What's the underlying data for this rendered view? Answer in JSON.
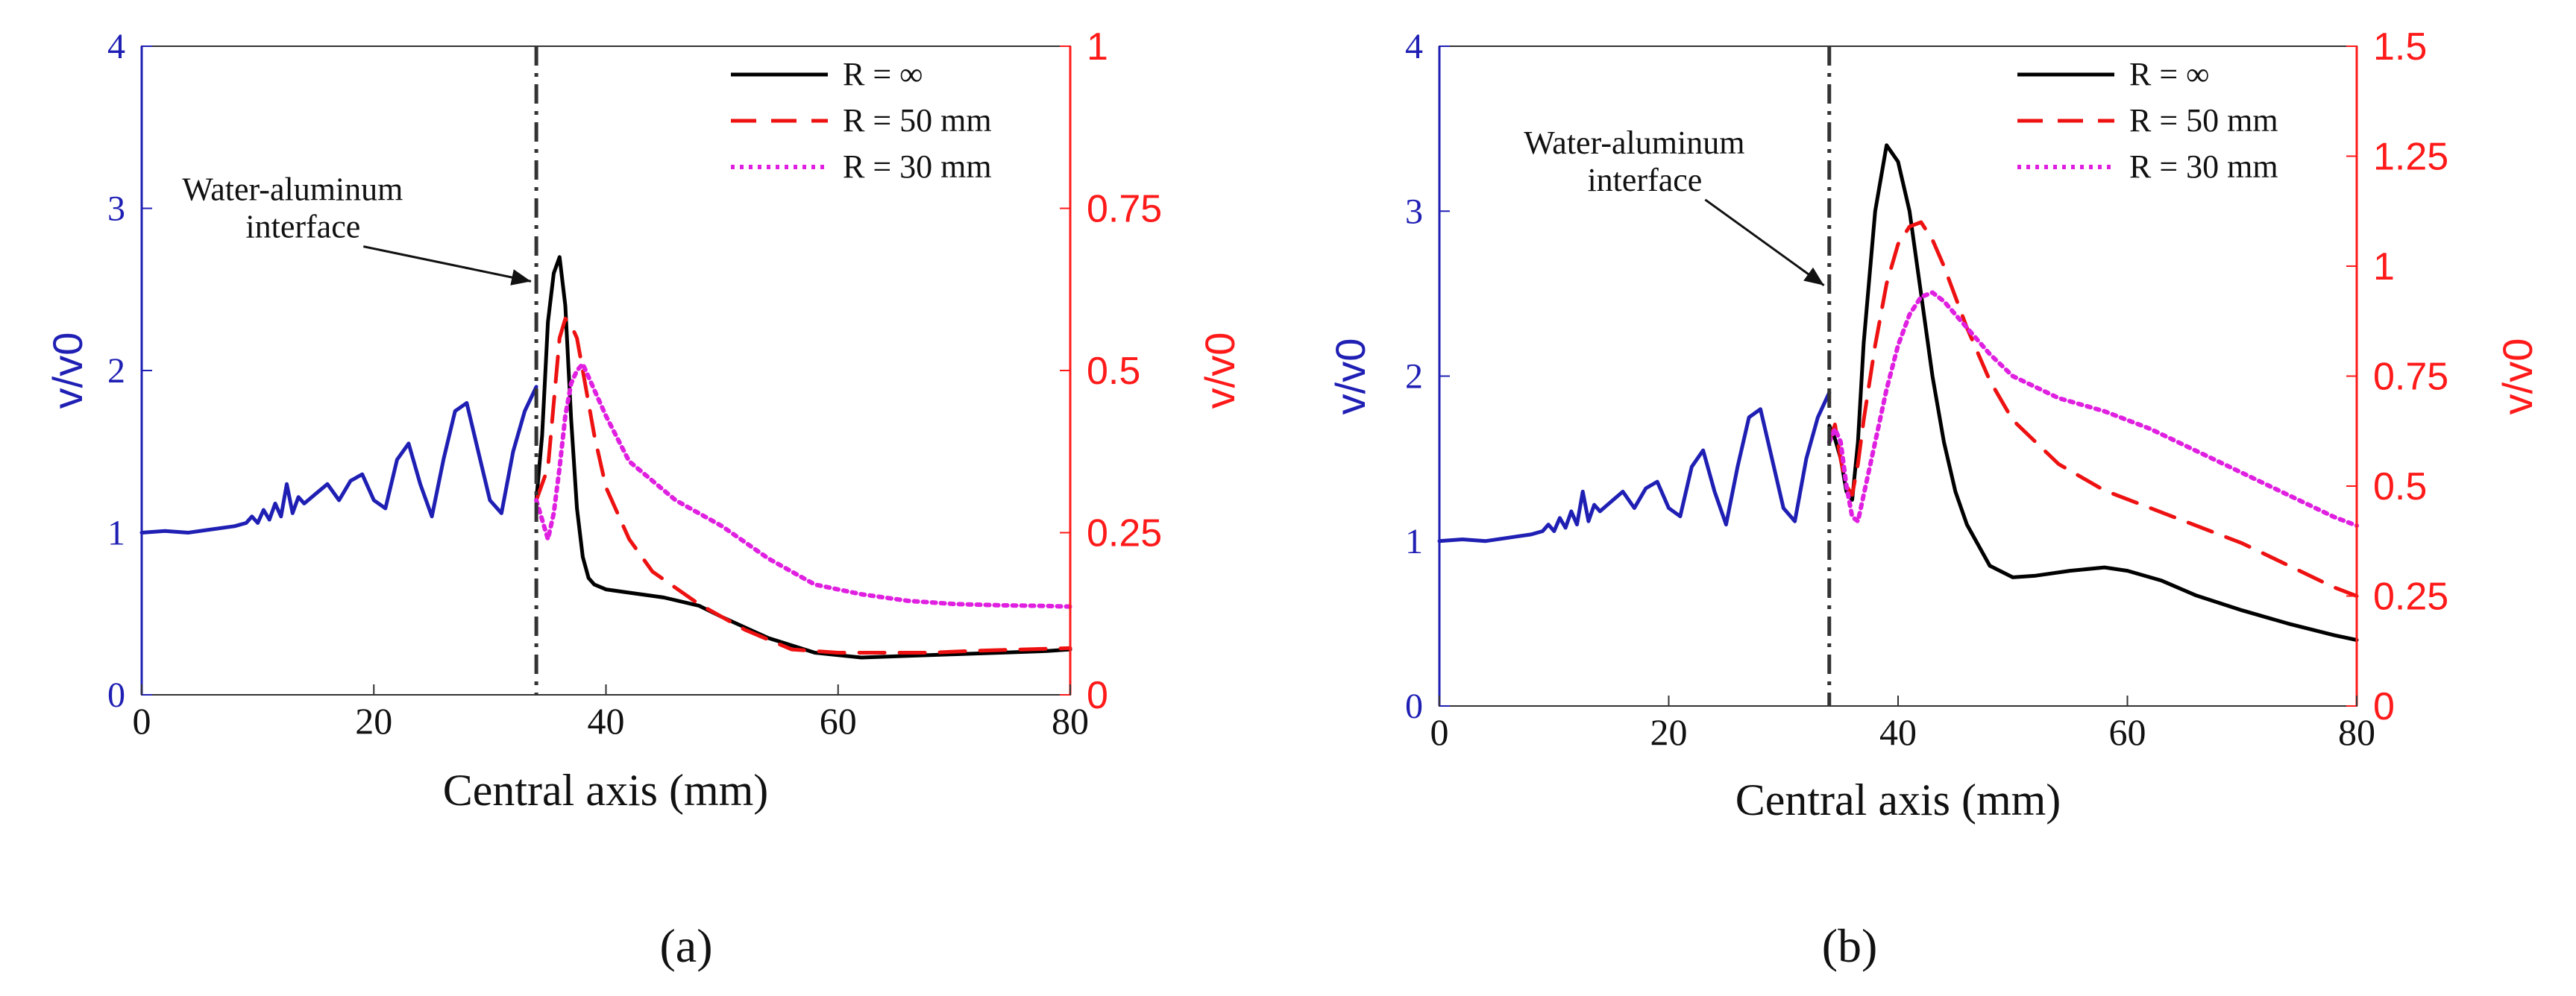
{
  "chart_data": [
    {
      "type": "line",
      "panel_label": "(a)",
      "xlabel": "Central axis (mm)",
      "ylabel_left": "v/v0",
      "ylabel_right": "v/v0",
      "xlim": [
        0,
        80
      ],
      "ylim_left": [
        0,
        4
      ],
      "ylim_right": [
        0,
        1
      ],
      "xticks": [
        "0",
        "20",
        "40",
        "60",
        "80"
      ],
      "yticks_left": [
        "0",
        "1",
        "2",
        "3",
        "4"
      ],
      "yticks_right": [
        "0",
        "0.25",
        "0.5",
        "0.75",
        "1"
      ],
      "grid": false,
      "interface_x": 34,
      "annotation": {
        "line1": "Water-aluminum",
        "line2": "interface",
        "text_at": [
          13,
          3.05
        ],
        "arrow_to": [
          33.8,
          2.55
        ]
      },
      "water_curve": {
        "name": "water region",
        "color": "#1f1fb4",
        "axis": "left",
        "x": [
          0,
          2,
          4,
          6,
          8,
          9,
          9.5,
          10,
          10.5,
          11,
          11.5,
          12,
          12.5,
          13,
          13.5,
          14,
          15,
          16,
          17,
          18,
          19,
          20,
          21,
          22,
          23,
          24,
          25,
          26,
          27,
          28,
          29,
          30,
          31,
          32,
          33,
          34
        ],
        "y": [
          1.0,
          1.01,
          1.0,
          1.02,
          1.04,
          1.06,
          1.1,
          1.06,
          1.14,
          1.08,
          1.18,
          1.1,
          1.3,
          1.12,
          1.22,
          1.18,
          1.24,
          1.3,
          1.2,
          1.32,
          1.36,
          1.2,
          1.15,
          1.45,
          1.55,
          1.3,
          1.1,
          1.45,
          1.75,
          1.8,
          1.5,
          1.2,
          1.12,
          1.5,
          1.75,
          1.9
        ]
      },
      "series": [
        {
          "name": "R = ∞",
          "color": "#000000",
          "dash": "none",
          "axis": "left",
          "x": [
            34,
            34.5,
            35,
            35.5,
            36,
            36.5,
            37,
            37.5,
            38,
            38.5,
            39,
            40,
            42,
            45,
            48,
            50,
            54,
            58,
            62,
            66,
            70,
            74,
            78,
            80
          ],
          "y": [
            1.2,
            1.6,
            2.3,
            2.6,
            2.7,
            2.4,
            1.7,
            1.15,
            0.85,
            0.72,
            0.68,
            0.65,
            0.63,
            0.6,
            0.55,
            0.48,
            0.35,
            0.26,
            0.23,
            0.24,
            0.25,
            0.26,
            0.27,
            0.28
          ]
        },
        {
          "name": "R = 50 mm",
          "color": "#ee1111",
          "dash": "34 20",
          "axis": "right",
          "x": [
            34,
            35,
            35.5,
            36,
            36.5,
            37,
            37.5,
            38,
            39,
            40,
            42,
            44,
            46,
            48,
            52,
            56,
            60,
            64,
            68,
            72,
            76,
            80
          ],
          "y": [
            0.3,
            0.35,
            0.45,
            0.55,
            0.58,
            0.57,
            0.55,
            0.5,
            0.4,
            0.32,
            0.24,
            0.19,
            0.165,
            0.14,
            0.1,
            0.07,
            0.065,
            0.065,
            0.065,
            0.068,
            0.07,
            0.072
          ]
        },
        {
          "name": "R = 30 mm",
          "color": "#e020e0",
          "dash": "5 7",
          "axis": "right",
          "x": [
            34,
            35,
            35.5,
            36,
            36.5,
            37,
            37.5,
            38,
            38.5,
            39,
            40,
            42,
            44,
            46,
            48,
            50,
            54,
            58,
            62,
            66,
            70,
            74,
            78,
            80
          ],
          "y": [
            0.3,
            0.24,
            0.28,
            0.35,
            0.43,
            0.48,
            0.5,
            0.51,
            0.49,
            0.47,
            0.43,
            0.36,
            0.33,
            0.3,
            0.28,
            0.26,
            0.21,
            0.17,
            0.155,
            0.145,
            0.14,
            0.138,
            0.137,
            0.136
          ]
        }
      ]
    },
    {
      "type": "line",
      "panel_label": "(b)",
      "xlabel": "Central axis (mm)",
      "ylabel_left": "v/v0",
      "ylabel_right": "v/v0",
      "xlim": [
        0,
        80
      ],
      "ylim_left": [
        0,
        4
      ],
      "ylim_right": [
        0,
        1.5
      ],
      "xticks": [
        "0",
        "20",
        "40",
        "60",
        "80"
      ],
      "yticks_left": [
        "0",
        "1",
        "2",
        "3",
        "4"
      ],
      "yticks_right": [
        "0",
        "0.25",
        "0.5",
        "0.75",
        "1",
        "1.25",
        "1.5"
      ],
      "grid": false,
      "interface_x": 34,
      "annotation": {
        "line1": "Water-aluminum",
        "line2": "interface",
        "text_at": [
          17,
          3.35
        ],
        "arrow_to": [
          33.8,
          2.55
        ]
      },
      "water_curve": {
        "name": "water region",
        "color": "#1f1fb4",
        "axis": "left",
        "x": [
          0,
          2,
          4,
          6,
          8,
          9,
          9.5,
          10,
          10.5,
          11,
          11.5,
          12,
          12.5,
          13,
          13.5,
          14,
          15,
          16,
          17,
          18,
          19,
          20,
          21,
          22,
          23,
          24,
          25,
          26,
          27,
          28,
          29,
          30,
          31,
          32,
          33,
          34
        ],
        "y": [
          1.0,
          1.01,
          1.0,
          1.02,
          1.04,
          1.06,
          1.1,
          1.06,
          1.14,
          1.08,
          1.18,
          1.1,
          1.3,
          1.12,
          1.22,
          1.18,
          1.24,
          1.3,
          1.2,
          1.32,
          1.36,
          1.2,
          1.15,
          1.45,
          1.55,
          1.3,
          1.1,
          1.45,
          1.75,
          1.8,
          1.5,
          1.2,
          1.12,
          1.5,
          1.75,
          1.9
        ]
      },
      "series": [
        {
          "name": "R = ∞",
          "color": "#000000",
          "dash": "none",
          "axis": "left",
          "x": [
            34,
            34.5,
            35,
            35.5,
            36,
            36.5,
            37,
            38,
            39,
            40,
            41,
            42,
            43,
            44,
            45,
            46,
            48,
            50,
            52,
            55,
            58,
            60,
            63,
            66,
            70,
            74,
            78,
            80
          ],
          "y": [
            1.7,
            1.62,
            1.5,
            1.3,
            1.25,
            1.6,
            2.2,
            3.0,
            3.4,
            3.3,
            3.0,
            2.5,
            2.0,
            1.6,
            1.3,
            1.1,
            0.85,
            0.78,
            0.79,
            0.82,
            0.84,
            0.82,
            0.76,
            0.67,
            0.58,
            0.5,
            0.43,
            0.4
          ]
        },
        {
          "name": "R = 50 mm",
          "color": "#ee1111",
          "dash": "34 20",
          "axis": "right",
          "x": [
            34,
            34.5,
            35,
            35.5,
            36,
            36.5,
            37,
            38,
            39,
            40,
            41,
            42,
            43,
            44,
            46,
            48,
            50,
            54,
            58,
            62,
            66,
            70,
            74,
            78,
            80
          ],
          "y": [
            0.6,
            0.64,
            0.56,
            0.5,
            0.48,
            0.55,
            0.65,
            0.82,
            0.96,
            1.05,
            1.09,
            1.1,
            1.06,
            1.0,
            0.86,
            0.74,
            0.65,
            0.55,
            0.49,
            0.45,
            0.41,
            0.37,
            0.32,
            0.27,
            0.25
          ]
        },
        {
          "name": "R = 30 mm",
          "color": "#e020e0",
          "dash": "5 7",
          "axis": "right",
          "x": [
            34,
            34.5,
            35,
            35.5,
            36,
            36.5,
            37,
            38,
            39,
            40,
            41,
            42,
            43,
            44,
            46,
            48,
            50,
            54,
            58,
            62,
            66,
            70,
            74,
            78,
            80
          ],
          "y": [
            0.6,
            0.63,
            0.6,
            0.5,
            0.43,
            0.42,
            0.48,
            0.6,
            0.72,
            0.82,
            0.89,
            0.93,
            0.94,
            0.92,
            0.86,
            0.8,
            0.75,
            0.7,
            0.67,
            0.63,
            0.58,
            0.53,
            0.48,
            0.43,
            0.41
          ]
        }
      ]
    }
  ]
}
